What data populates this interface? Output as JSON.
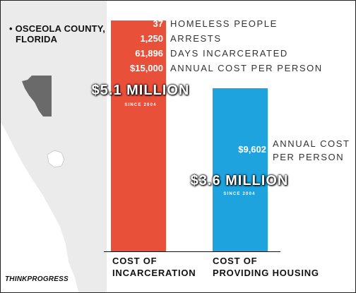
{
  "location": {
    "line1": "• OSCEOLA COUNTY,",
    "line2": "FLORIDA"
  },
  "colors": {
    "incarceration": "#e8503a",
    "housing": "#1ea3df",
    "map_land": "#ebebeb",
    "map_county": "#6a6a6a"
  },
  "incarceration_stats": [
    {
      "value": "37",
      "label": "HOMELESS PEOPLE"
    },
    {
      "value": "1,250",
      "label": "ARRESTS"
    },
    {
      "value": "61,896",
      "label": "DAYS INCARCERATED"
    },
    {
      "value": "$15,000",
      "label": "ANNUAL COST PER PERSON"
    }
  ],
  "incarceration_total": "$5.1 MILLION",
  "incarceration_since": "SINCE 2004",
  "housing_stat": {
    "value": "$9,602",
    "label_line1": "ANNUAL COST",
    "label_line2": "PER PERSON"
  },
  "housing_total": "$3.6 MILLION",
  "housing_since": "SINCE 2004",
  "categories": {
    "incarceration_line1": "COST OF",
    "incarceration_line2": "INCARCERATION",
    "housing_line1": "COST OF",
    "housing_line2": "PROVIDING HOUSING"
  },
  "brand": "THINKPROGRESS",
  "chart_data": {
    "type": "bar",
    "categories": [
      "COST OF INCARCERATION",
      "COST OF PROVIDING HOUSING"
    ],
    "values": [
      5.1,
      3.6
    ],
    "unit": "$ million since 2004",
    "title": "",
    "xlabel": "",
    "ylabel": "",
    "ylim": [
      0,
      5.3
    ],
    "grid": false,
    "legend": "none"
  }
}
